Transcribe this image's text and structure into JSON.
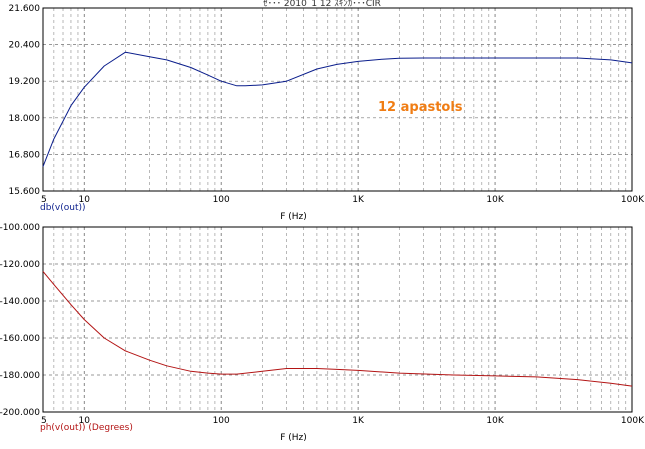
{
  "window": {
    "title": "ｾ･･･ 2010_1 12 ｽｷﾝｶ･･･CIR"
  },
  "annotation": {
    "text": "12 apastols",
    "color": "#f07d14"
  },
  "chart_data": [
    {
      "type": "line",
      "xscale": "log",
      "xlim": [
        5,
        100000
      ],
      "ylim": [
        15.6,
        21.6
      ],
      "x_tick_labels": [
        "5",
        "10",
        "100",
        "1K",
        "10K",
        "100K"
      ],
      "x_tick_values": [
        5,
        10,
        100,
        1000,
        10000,
        100000
      ],
      "y_ticks": [
        15.6,
        16.8,
        18.0,
        19.2,
        20.4,
        21.6
      ],
      "y_tick_labels": [
        "15.600",
        "16.800",
        "18.000",
        "19.200",
        "20.400",
        "21.600"
      ],
      "xlabel": "F (Hz)",
      "trace_label": "db(v(out))",
      "grid": true,
      "series": [
        {
          "color": "#0b1e8c",
          "x": [
            5,
            6,
            8,
            10,
            14,
            20,
            30,
            40,
            60,
            80,
            100,
            130,
            150,
            200,
            300,
            500,
            700,
            1000,
            1500,
            2000,
            3000,
            5000,
            10000,
            20000,
            40000,
            70000,
            100000
          ],
          "y": [
            16.4,
            17.3,
            18.4,
            19.0,
            19.7,
            20.15,
            20.0,
            19.9,
            19.65,
            19.4,
            19.2,
            19.05,
            19.05,
            19.08,
            19.2,
            19.6,
            19.75,
            19.85,
            19.92,
            19.95,
            19.96,
            19.96,
            19.96,
            19.96,
            19.96,
            19.9,
            19.8
          ]
        }
      ]
    },
    {
      "type": "line",
      "xscale": "log",
      "xlim": [
        5,
        100000
      ],
      "ylim": [
        -200,
        -100
      ],
      "x_tick_labels": [
        "5",
        "10",
        "100",
        "1K",
        "10K",
        "100K"
      ],
      "x_tick_values": [
        5,
        10,
        100,
        1000,
        10000,
        100000
      ],
      "y_ticks": [
        -200,
        -180,
        -160,
        -140,
        -120,
        -100
      ],
      "y_tick_labels": [
        "-200.000",
        "-180.000",
        "-160.000",
        "-140.000",
        "-120.000",
        "-100.000"
      ],
      "xlabel": "F (Hz)",
      "trace_label": "ph(v(out)) (Degrees)",
      "grid": true,
      "series": [
        {
          "color": "#b31414",
          "x": [
            5,
            6,
            8,
            10,
            14,
            20,
            30,
            40,
            60,
            80,
            100,
            130,
            200,
            300,
            500,
            700,
            1000,
            2000,
            5000,
            10000,
            20000,
            40000,
            70000,
            100000
          ],
          "y": [
            -124,
            -131,
            -142,
            -150,
            -160,
            -167,
            -172,
            -175,
            -178,
            -179,
            -179.5,
            -179.5,
            -178,
            -176.5,
            -176.5,
            -177,
            -177.5,
            -179,
            -180,
            -180.5,
            -181,
            -182.5,
            -184.5,
            -186
          ]
        }
      ]
    }
  ]
}
